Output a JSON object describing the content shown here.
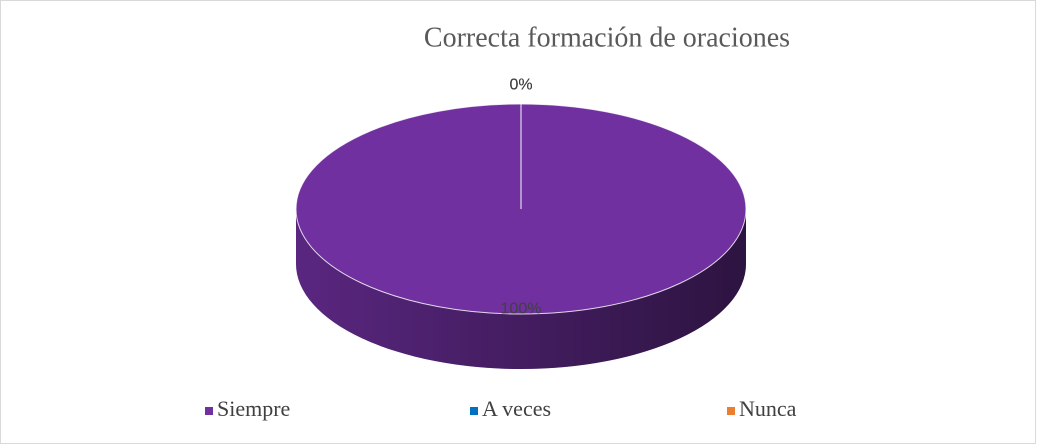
{
  "chart_data": {
    "type": "pie",
    "title": "Correcta formación de oraciones",
    "categories": [
      "Siempre",
      "A veces",
      "Nunca"
    ],
    "values": [
      100,
      0,
      0
    ],
    "value_labels": [
      "100%",
      "0%",
      "0%"
    ],
    "colors": [
      "#7030a0",
      "#0070c0",
      "#ed7d31"
    ],
    "legend": "bottom"
  }
}
